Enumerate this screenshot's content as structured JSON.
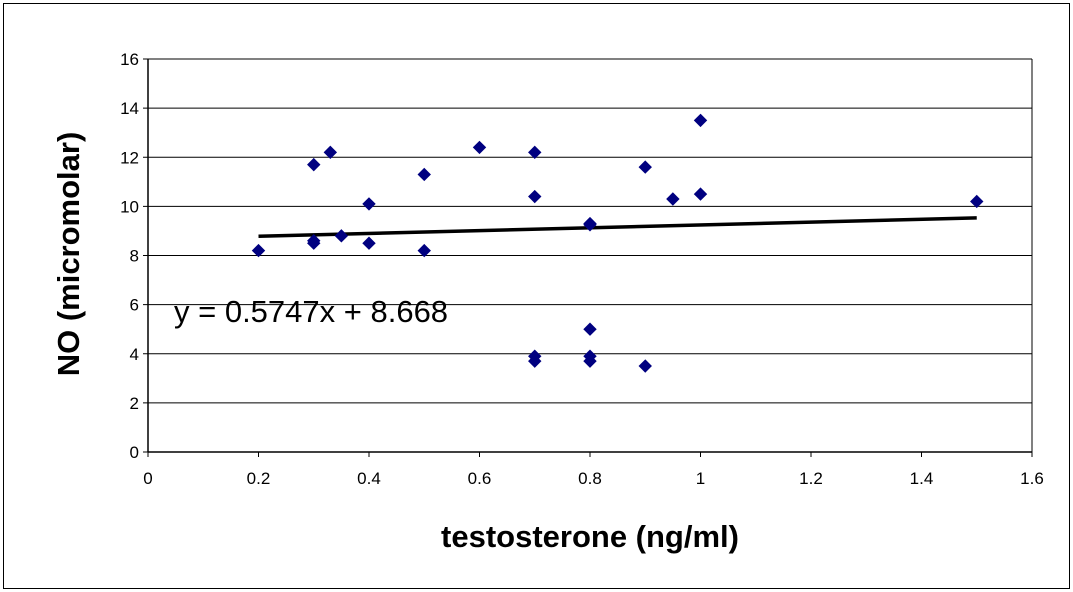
{
  "chart_data": {
    "type": "scatter",
    "title": "",
    "xlabel": "testosterone (ng/ml)",
    "ylabel": "NO (micromolar)",
    "xlim": [
      0,
      1.6
    ],
    "ylim": [
      0,
      16
    ],
    "x_ticks": [
      "0",
      "0.2",
      "0.4",
      "0.6",
      "0.8",
      "1",
      "1.2",
      "1.4",
      "1.6"
    ],
    "y_ticks": [
      "0",
      "2",
      "4",
      "6",
      "8",
      "10",
      "12",
      "14",
      "16"
    ],
    "grid": "horizontal",
    "legend": "none",
    "marker_color": "#000080",
    "points": [
      {
        "x": 0.2,
        "y": 8.2
      },
      {
        "x": 0.3,
        "y": 11.7
      },
      {
        "x": 0.3,
        "y": 8.6
      },
      {
        "x": 0.3,
        "y": 8.5
      },
      {
        "x": 0.33,
        "y": 12.2
      },
      {
        "x": 0.35,
        "y": 8.8
      },
      {
        "x": 0.4,
        "y": 10.1
      },
      {
        "x": 0.4,
        "y": 8.5
      },
      {
        "x": 0.5,
        "y": 11.3
      },
      {
        "x": 0.5,
        "y": 8.2
      },
      {
        "x": 0.6,
        "y": 12.4
      },
      {
        "x": 0.7,
        "y": 12.2
      },
      {
        "x": 0.7,
        "y": 10.4
      },
      {
        "x": 0.7,
        "y": 3.9
      },
      {
        "x": 0.7,
        "y": 3.7
      },
      {
        "x": 0.8,
        "y": 9.3
      },
      {
        "x": 0.8,
        "y": 9.25
      },
      {
        "x": 0.8,
        "y": 5.0
      },
      {
        "x": 0.8,
        "y": 3.9
      },
      {
        "x": 0.8,
        "y": 3.7
      },
      {
        "x": 0.9,
        "y": 11.6
      },
      {
        "x": 0.9,
        "y": 3.5
      },
      {
        "x": 0.95,
        "y": 10.3
      },
      {
        "x": 1.0,
        "y": 13.5
      },
      {
        "x": 1.0,
        "y": 10.5
      },
      {
        "x": 1.5,
        "y": 10.2
      }
    ],
    "trendline": {
      "type": "linear",
      "slope": 0.5747,
      "intercept": 8.668,
      "x_range": [
        0.2,
        1.5
      ],
      "equation_label": "y = 0.5747x + 8.668"
    }
  }
}
